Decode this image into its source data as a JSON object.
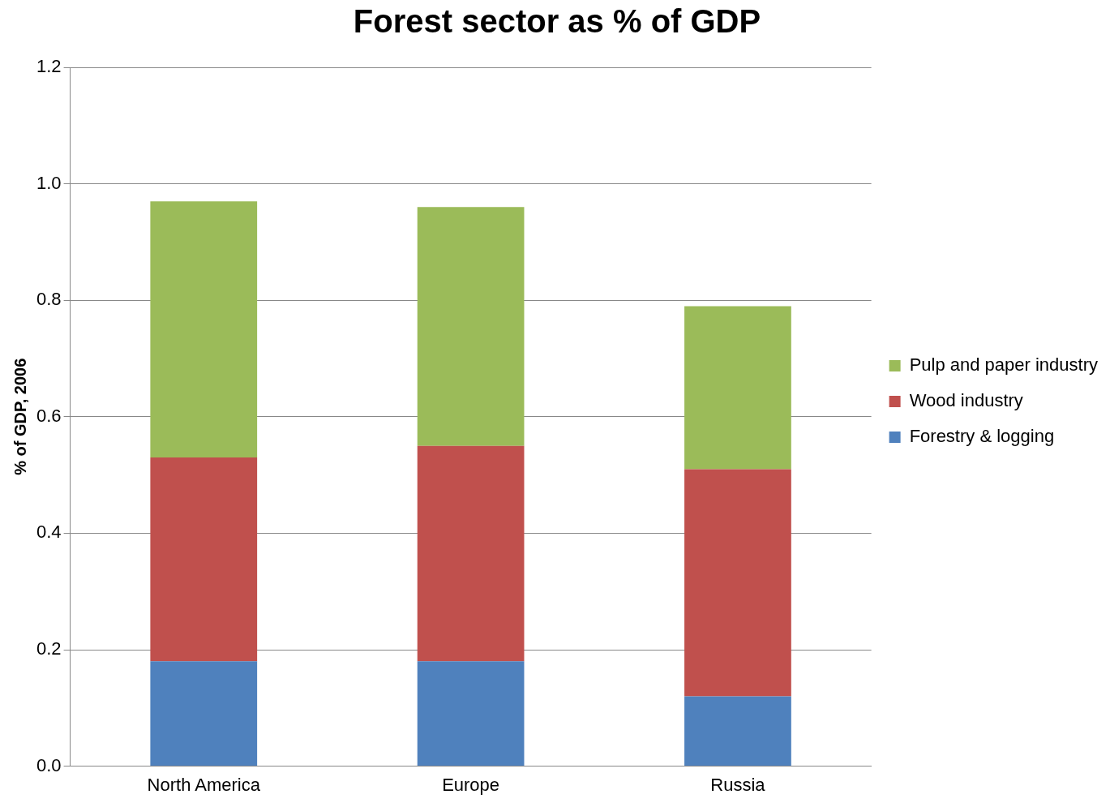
{
  "chart_data": {
    "type": "bar",
    "title": "Forest sector as % of GDP",
    "ylabel": "% of GDP, 2006",
    "categories": [
      "North America",
      "Europe",
      "Russia"
    ],
    "stacked": true,
    "series": [
      {
        "name": "Forestry & logging",
        "color": "#4f81bd",
        "values": [
          0.18,
          0.18,
          0.12
        ]
      },
      {
        "name": "Wood industry",
        "color": "#c0504d",
        "values": [
          0.35,
          0.37,
          0.39
        ]
      },
      {
        "name": "Pulp and paper industry",
        "color": "#9bbb59",
        "values": [
          0.44,
          0.41,
          0.28
        ]
      }
    ],
    "ylim": [
      0,
      1.2
    ],
    "yticks": [
      {
        "value": 0,
        "label": "0.0"
      },
      {
        "value": 0.2,
        "label": "0.2"
      },
      {
        "value": 0.4,
        "label": "0.4"
      },
      {
        "value": 0.6,
        "label": "0.6"
      },
      {
        "value": 0.8,
        "label": "0.8"
      },
      {
        "value": 1,
        "label": "1.0"
      },
      {
        "value": 1.2,
        "label": "1.2"
      }
    ],
    "grid": "y",
    "legend": "right"
  }
}
